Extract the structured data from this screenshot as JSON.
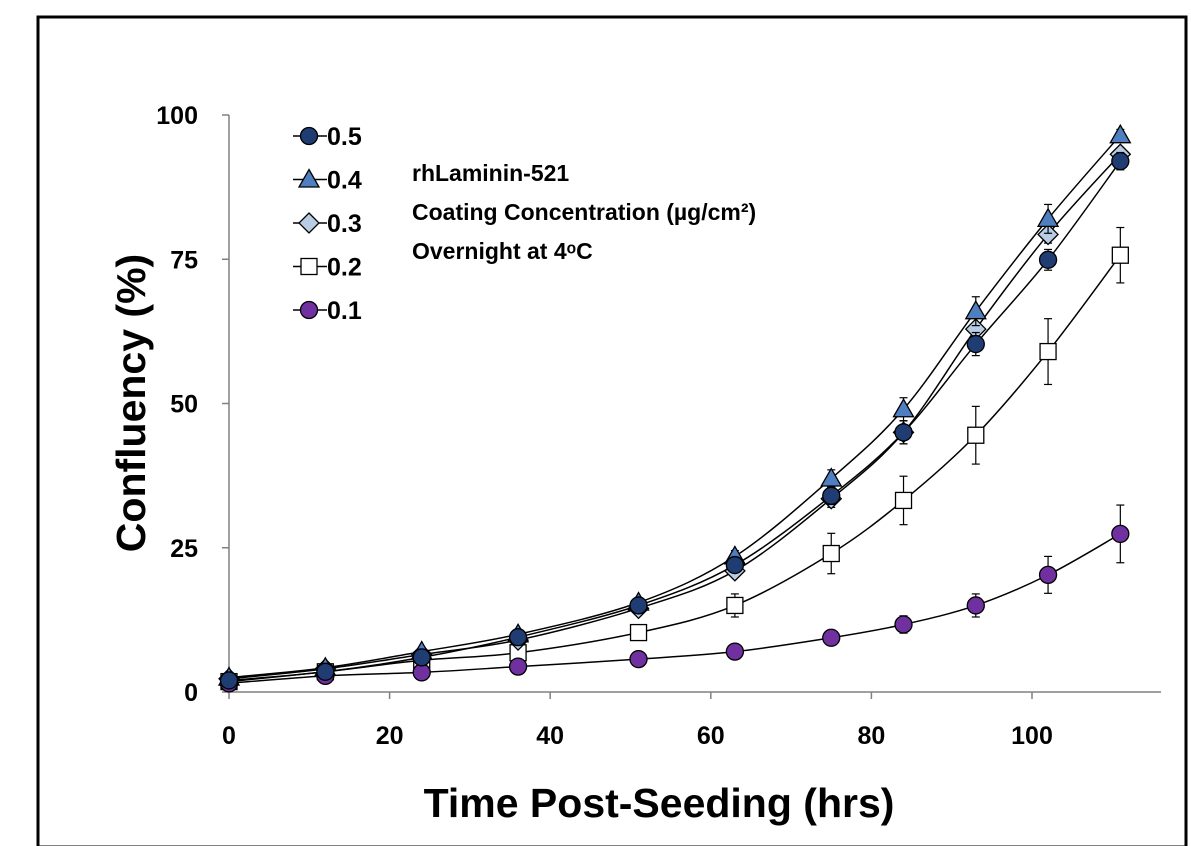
{
  "chart_data": {
    "type": "line",
    "title": "",
    "xlabel": "Time Post-Seeding (hrs)",
    "ylabel": "Confluency (%)",
    "xlim": [
      0,
      111
    ],
    "ylim": [
      0,
      100
    ],
    "xticks": [
      0,
      20,
      40,
      60,
      80,
      100
    ],
    "yticks": [
      0,
      25,
      50,
      75,
      100
    ],
    "grid": false,
    "legend_position": "top-left",
    "annotation": [
      "rhLaminin-521",
      "Coating Concentration (µg/cm²)",
      "Overnight at 4ᵒC"
    ],
    "x": [
      0,
      12,
      24,
      36,
      51,
      63,
      75,
      84,
      93,
      102,
      111
    ],
    "series": [
      {
        "name": "0.5",
        "marker": "circle",
        "color": "#1f3d73",
        "values": [
          2.0,
          3.5,
          6.0,
          9.5,
          15.0,
          22.0,
          34.0,
          45.0,
          60.3,
          74.9,
          92.0
        ],
        "errors": [
          0.3,
          0.3,
          0.4,
          0.5,
          0.8,
          1.0,
          1.5,
          2.0,
          2.0,
          1.8,
          1.5
        ]
      },
      {
        "name": "0.4",
        "marker": "triangle",
        "color": "#4f7fc0",
        "values": [
          2.5,
          4.2,
          7.0,
          10.0,
          15.5,
          23.5,
          37.0,
          49.0,
          66.0,
          82.0,
          96.5
        ],
        "errors": [
          0.3,
          0.3,
          0.4,
          0.5,
          0.8,
          1.0,
          1.5,
          2.0,
          2.5,
          2.5,
          1.0
        ]
      },
      {
        "name": "0.3",
        "marker": "diamond",
        "color": "#b8cce4",
        "values": [
          2.3,
          4.0,
          6.5,
          9.0,
          14.5,
          21.0,
          33.5,
          45.0,
          62.9,
          79.3,
          93.2
        ],
        "errors": [
          0.3,
          0.3,
          0.4,
          0.5,
          0.8,
          1.0,
          1.5,
          2.0,
          2.0,
          1.5,
          1.0
        ]
      },
      {
        "name": "0.2",
        "marker": "square",
        "color": "#ffffff",
        "values": [
          1.8,
          3.5,
          5.5,
          6.8,
          10.3,
          15.0,
          24.0,
          33.2,
          44.5,
          59.0,
          75.7
        ],
        "errors": [
          0.3,
          0.4,
          0.6,
          1.0,
          1.2,
          2.0,
          3.5,
          4.2,
          5.0,
          5.7,
          4.8
        ]
      },
      {
        "name": "0.1",
        "marker": "circle",
        "color": "#7030a0",
        "values": [
          1.5,
          2.8,
          3.4,
          4.4,
          5.7,
          7.0,
          9.4,
          11.7,
          15.0,
          20.3,
          27.4
        ],
        "errors": [
          0.3,
          0.3,
          0.3,
          0.4,
          0.5,
          0.6,
          0.8,
          1.5,
          2.0,
          3.2,
          5.0
        ]
      }
    ]
  }
}
